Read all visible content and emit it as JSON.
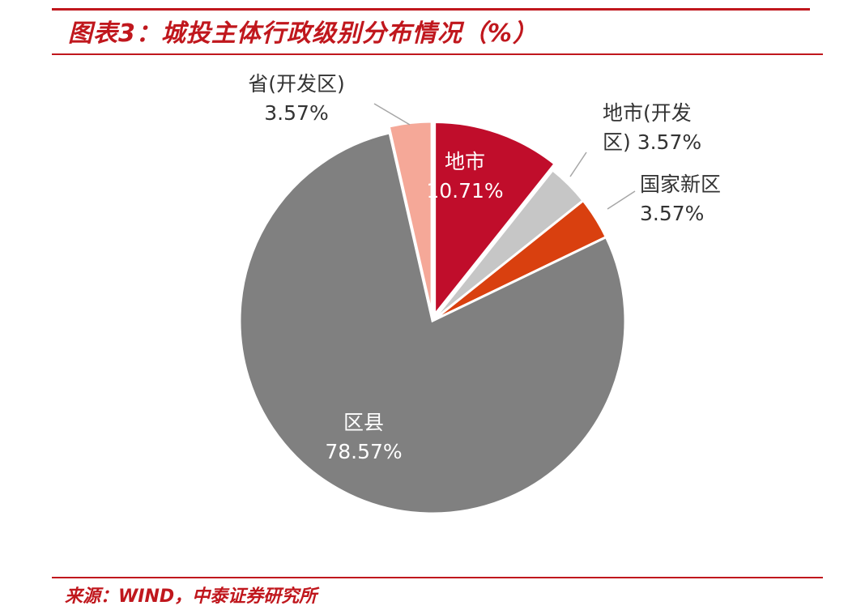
{
  "title": "图表3：城投主体行政级别分布情况（%）",
  "source": "来源：WIND，中泰证券研究所",
  "chart_data": {
    "type": "pie",
    "title": "图表3：城投主体行政级别分布情况（%）",
    "start_angle_deg": 0,
    "direction": "clockwise",
    "slices": [
      {
        "name": "地市",
        "value": 10.71,
        "value_label": "10.71%",
        "color": "#c00d2b",
        "exploded": true,
        "label_inside": true
      },
      {
        "name": "地市(开发区)",
        "value": 3.57,
        "value_label": "3.57%",
        "color": "#c6c6c6",
        "exploded": false,
        "label_inside": false
      },
      {
        "name": "国家新区",
        "value": 3.57,
        "value_label": "3.57%",
        "color": "#d9400f",
        "exploded": false,
        "label_inside": false
      },
      {
        "name": "区县",
        "value": 78.57,
        "value_label": "78.57%",
        "color": "#808080",
        "exploded": false,
        "label_inside": true
      },
      {
        "name": "省(开发区)",
        "value": 3.57,
        "value_label": "3.57%",
        "color": "#f5a898",
        "exploded": true,
        "label_inside": false
      }
    ],
    "outside_labels": {
      "地市(开发区)": [
        "地市(开发",
        "区) 3.57%"
      ],
      "国家新区": [
        "国家新区",
        "3.57%"
      ],
      "省(开发区)": [
        "省(开发区)",
        "3.57%"
      ]
    }
  }
}
